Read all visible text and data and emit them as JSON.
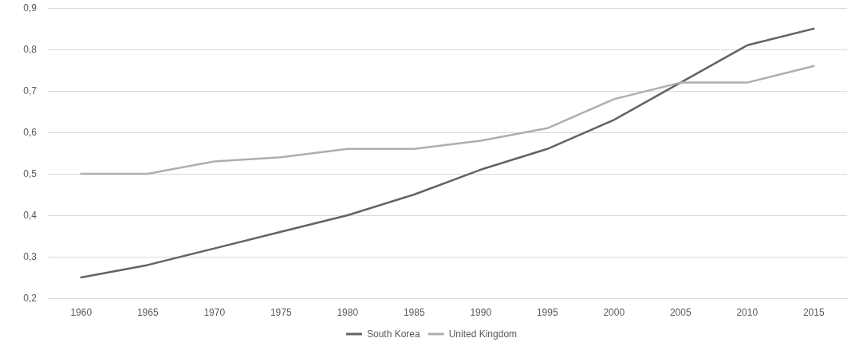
{
  "chart_data": {
    "type": "line",
    "categories": [
      "1960",
      "1965",
      "1970",
      "1975",
      "1980",
      "1985",
      "1990",
      "1995",
      "2000",
      "2005",
      "2010",
      "2015"
    ],
    "series": [
      {
        "name": "South Korea",
        "color": "#636363",
        "values": [
          0.25,
          0.28,
          0.32,
          0.36,
          0.4,
          0.45,
          0.51,
          0.56,
          0.63,
          0.72,
          0.81,
          0.85
        ]
      },
      {
        "name": "United Kingdom",
        "color": "#aeaeae",
        "values": [
          0.5,
          0.5,
          0.53,
          0.54,
          0.56,
          0.56,
          0.58,
          0.61,
          0.68,
          0.72,
          0.72,
          0.76
        ]
      }
    ],
    "ylim": [
      0.2,
      0.9
    ],
    "yticks": [
      {
        "value": 0.2,
        "label": "0,2"
      },
      {
        "value": 0.3,
        "label": "0,3"
      },
      {
        "value": 0.4,
        "label": "0,4"
      },
      {
        "value": 0.5,
        "label": "0,5"
      },
      {
        "value": 0.6,
        "label": "0,6"
      },
      {
        "value": 0.7,
        "label": "0,7"
      },
      {
        "value": 0.8,
        "label": "0,8"
      },
      {
        "value": 0.9,
        "label": "0,9"
      }
    ],
    "grid": "y",
    "legend": "bottom",
    "marker": "none",
    "line_style": "solid"
  }
}
